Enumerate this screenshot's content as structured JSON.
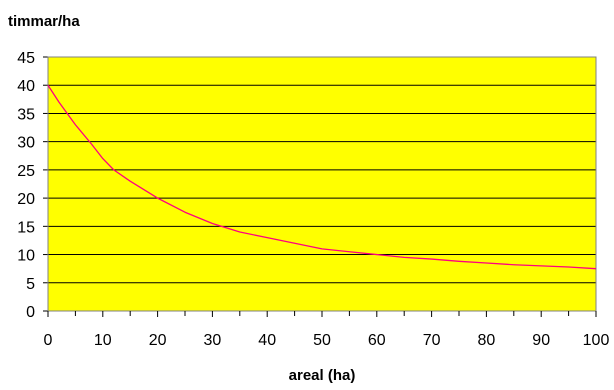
{
  "chart_data": {
    "type": "line",
    "title": "",
    "ylabel": "timmar/ha",
    "xlabel": "areal (ha)",
    "xlim": [
      0,
      100
    ],
    "ylim": [
      0,
      45
    ],
    "x_ticks": [
      "0",
      "10",
      "20",
      "30",
      "40",
      "50",
      "60",
      "70",
      "80",
      "90",
      "100"
    ],
    "y_ticks": [
      "0",
      "5",
      "10",
      "15",
      "20",
      "25",
      "30",
      "35",
      "40",
      "45"
    ],
    "grid": "horizontal",
    "legend": "none",
    "colors": {
      "plot_background": "#ffff00",
      "line": "#ff0080",
      "grid": "#000000"
    },
    "series": [
      {
        "x": [
          0,
          2,
          5,
          8,
          10,
          12,
          15,
          20,
          25,
          30,
          35,
          40,
          45,
          50,
          55,
          60,
          65,
          70,
          75,
          80,
          85,
          90,
          95,
          100
        ],
        "values": [
          40,
          37,
          33,
          29.5,
          27,
          25,
          23,
          20,
          17.5,
          15.5,
          14,
          13,
          12,
          11,
          10.5,
          10,
          9.5,
          9.2,
          8.8,
          8.5,
          8.2,
          8,
          7.8,
          7.5
        ]
      }
    ]
  }
}
